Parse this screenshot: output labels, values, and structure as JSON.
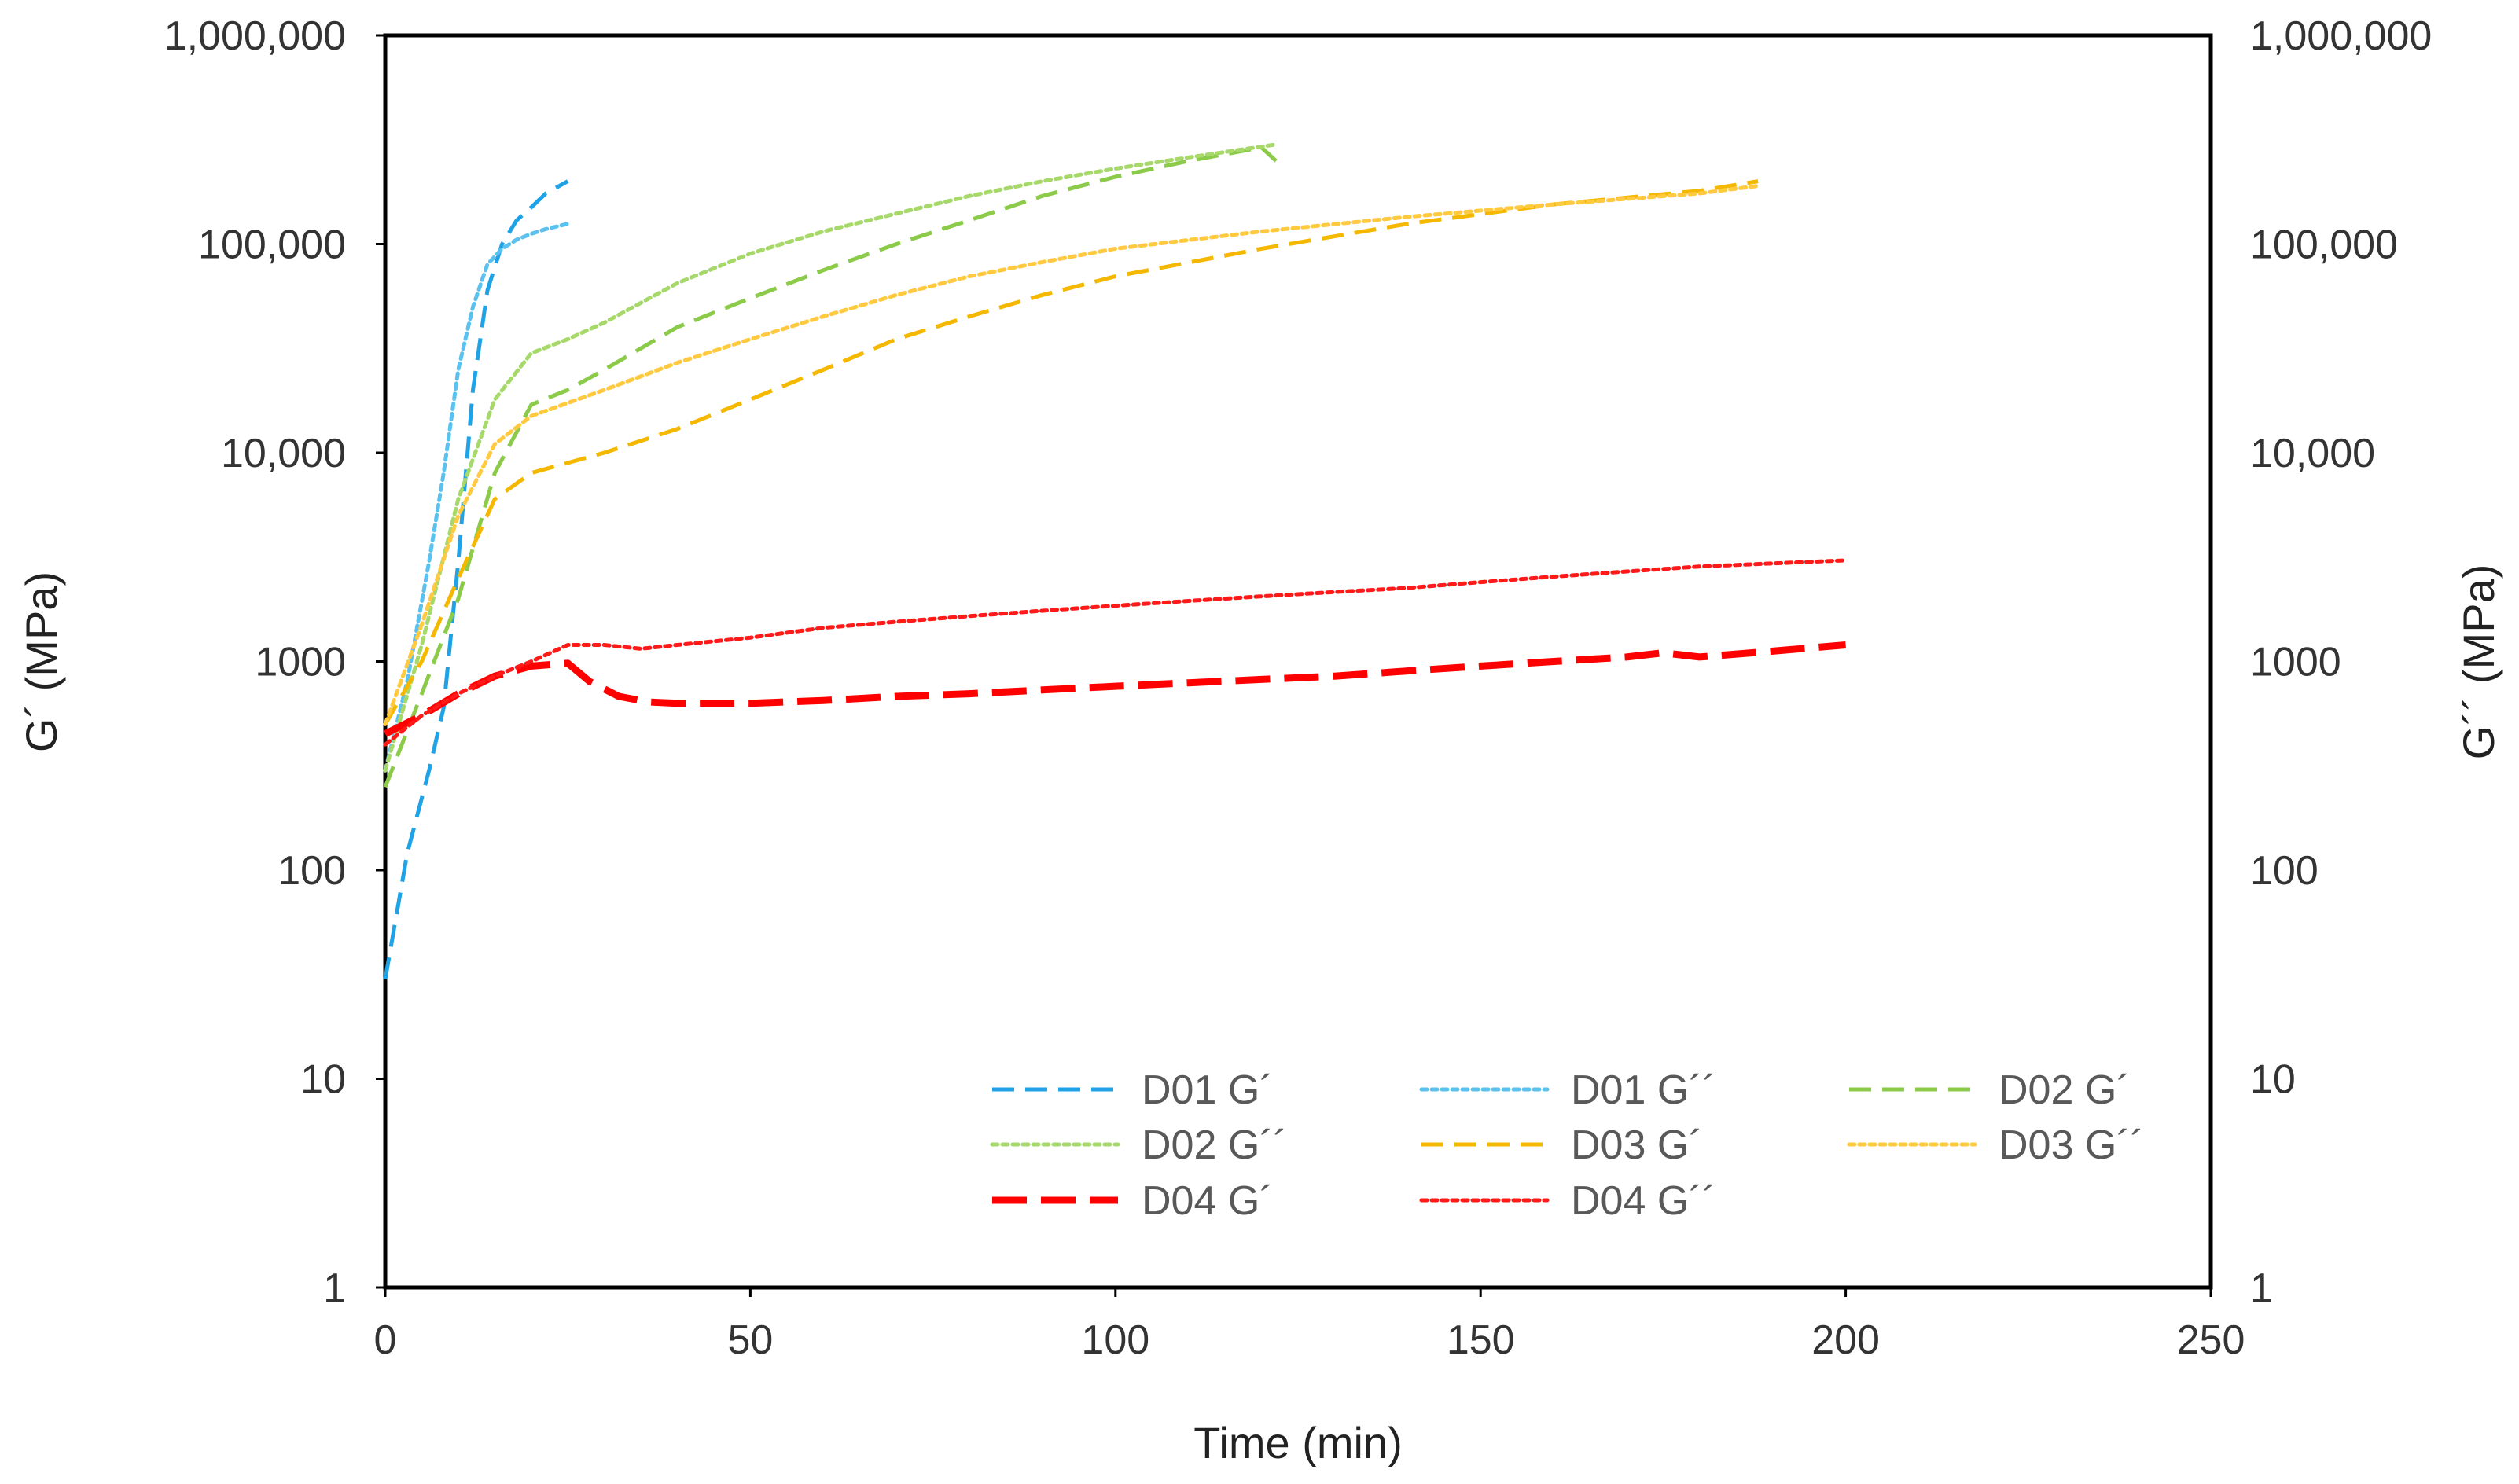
{
  "chart_data": {
    "type": "line",
    "title": "",
    "xlabel": "Time (min)",
    "ylabel": "G´ (MPa)",
    "y2label": "G´´ (MPa)",
    "xlim": [
      0,
      250
    ],
    "ylim": [
      1,
      1000000
    ],
    "yscale": "log",
    "grid": false,
    "legend_position": "lower-right inside plot",
    "x_ticks": [
      0,
      50,
      100,
      150,
      200,
      250
    ],
    "x_tick_labels": [
      "0",
      "50",
      "100",
      "150",
      "200",
      "250"
    ],
    "y_ticks": [
      1,
      10,
      100,
      1000,
      10000,
      100000,
      1000000
    ],
    "y_tick_labels": [
      "1",
      "10",
      "100",
      "1000",
      "10,000",
      "100,000",
      "1,000,000"
    ],
    "y2_tick_labels": [
      "1",
      "10",
      "100",
      "1000",
      "10,000",
      "100,000",
      "1,000,000"
    ],
    "series": [
      {
        "name": "D01 G´",
        "color": "#1FA3E6",
        "style": "dashed",
        "weight": "normal",
        "x": [
          0,
          3,
          6,
          8,
          10,
          12,
          14,
          16,
          18,
          20,
          22,
          25
        ],
        "y": [
          30,
          120,
          300,
          600,
          3000,
          20000,
          60000,
          100000,
          130000,
          150000,
          175000,
          200000
        ]
      },
      {
        "name": "D01 G´´",
        "color": "#5BC2F0",
        "style": "dotted",
        "weight": "normal",
        "x": [
          0,
          3,
          6,
          8,
          10,
          12,
          14,
          16,
          18,
          20,
          22,
          25
        ],
        "y": [
          300,
          800,
          3000,
          8000,
          25000,
          50000,
          80000,
          95000,
          105000,
          112000,
          118000,
          125000
        ]
      },
      {
        "name": "D02 G´",
        "color": "#8CCB4A",
        "style": "dashed",
        "weight": "normal",
        "x": [
          0,
          5,
          10,
          15,
          20,
          25,
          30,
          40,
          50,
          60,
          70,
          80,
          90,
          100,
          110,
          120,
          122
        ],
        "y": [
          250,
          700,
          2000,
          8000,
          17000,
          20000,
          25000,
          40000,
          55000,
          75000,
          100000,
          130000,
          170000,
          210000,
          250000,
          290000,
          250000
        ]
      },
      {
        "name": "D02 G´´",
        "color": "#A6D86A",
        "style": "dotted",
        "weight": "normal",
        "x": [
          0,
          5,
          10,
          15,
          20,
          25,
          30,
          40,
          50,
          60,
          70,
          80,
          90,
          100,
          110,
          122
        ],
        "y": [
          300,
          1200,
          6000,
          18000,
          30000,
          35000,
          42000,
          65000,
          90000,
          115000,
          140000,
          170000,
          200000,
          230000,
          260000,
          300000
        ]
      },
      {
        "name": "D03 G´",
        "color": "#F5B800",
        "style": "dashed",
        "weight": "normal",
        "x": [
          0,
          5,
          10,
          15,
          20,
          30,
          40,
          50,
          60,
          70,
          80,
          90,
          100,
          120,
          140,
          160,
          180,
          188
        ],
        "y": [
          500,
          1000,
          2500,
          6000,
          8000,
          10000,
          13000,
          18000,
          25000,
          35000,
          45000,
          57000,
          70000,
          95000,
          125000,
          155000,
          180000,
          200000
        ]
      },
      {
        "name": "D03 G´´",
        "color": "#FFC940",
        "style": "dotted",
        "weight": "normal",
        "x": [
          0,
          5,
          10,
          15,
          20,
          30,
          40,
          50,
          60,
          70,
          80,
          90,
          100,
          120,
          140,
          160,
          180,
          188
        ],
        "y": [
          500,
          1500,
          5000,
          11000,
          15000,
          20000,
          27000,
          35000,
          45000,
          57000,
          70000,
          82000,
          95000,
          115000,
          135000,
          155000,
          175000,
          190000
        ]
      },
      {
        "name": "D04 G´",
        "color": "#FF0000",
        "style": "dashed",
        "weight": "heavy",
        "x": [
          0,
          5,
          10,
          15,
          20,
          25,
          28,
          32,
          36,
          40,
          50,
          60,
          70,
          80,
          90,
          100,
          110,
          120,
          130,
          140,
          150,
          160,
          170,
          175,
          180,
          190,
          200
        ],
        "y": [
          450,
          550,
          700,
          850,
          950,
          980,
          800,
          680,
          640,
          630,
          630,
          650,
          680,
          700,
          730,
          760,
          790,
          820,
          850,
          900,
          950,
          1000,
          1050,
          1100,
          1050,
          1120,
          1200
        ]
      },
      {
        "name": "D04 G´´",
        "color": "#FF1A1A",
        "style": "dotted",
        "weight": "normal",
        "x": [
          0,
          5,
          10,
          15,
          20,
          25,
          30,
          35,
          40,
          50,
          60,
          70,
          80,
          90,
          100,
          110,
          120,
          130,
          140,
          150,
          160,
          170,
          180,
          190,
          200
        ],
        "y": [
          400,
          550,
          700,
          850,
          1000,
          1200,
          1200,
          1150,
          1200,
          1300,
          1450,
          1550,
          1650,
          1750,
          1850,
          1950,
          2050,
          2150,
          2250,
          2400,
          2550,
          2700,
          2850,
          2950,
          3050
        ]
      }
    ]
  }
}
